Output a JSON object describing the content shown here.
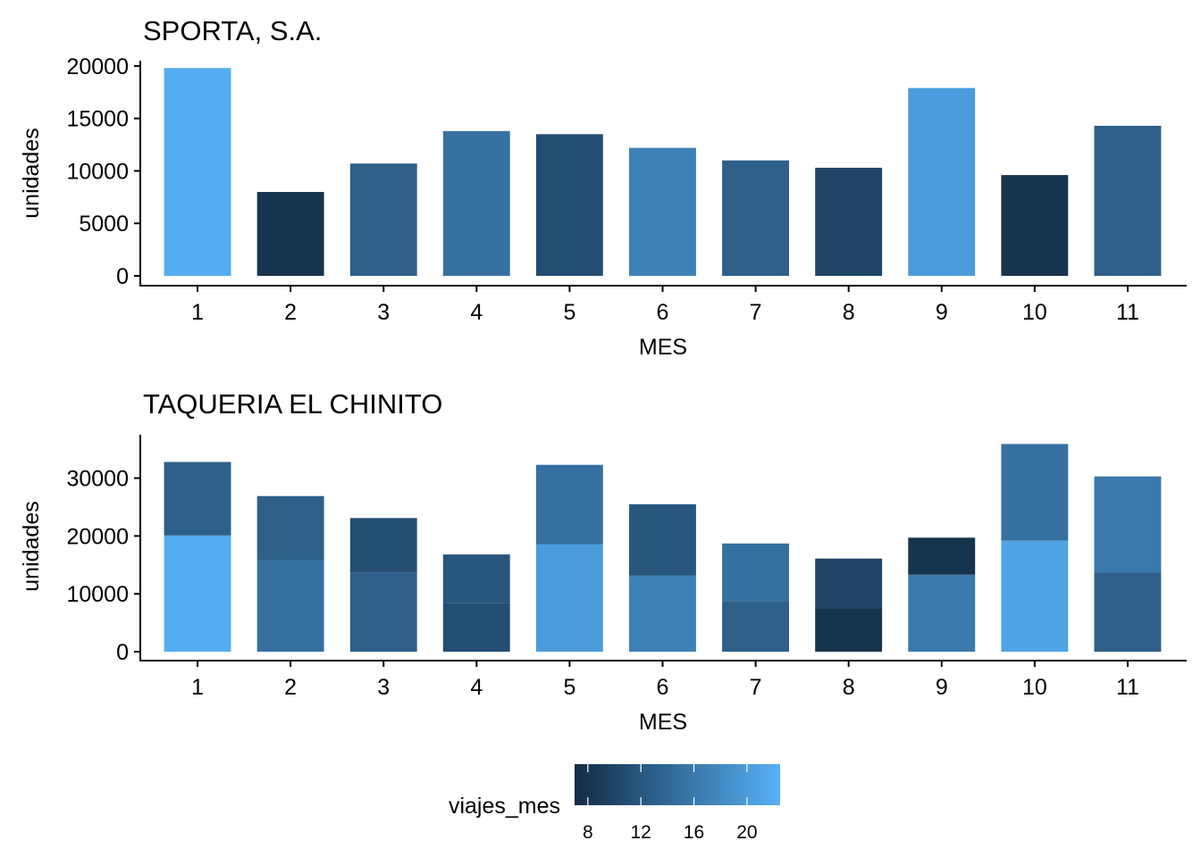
{
  "chart_data": [
    {
      "type": "bar",
      "stacked": false,
      "title": "SPORTA, S.A.",
      "xlabel": "MES",
      "ylabel": "unidades",
      "categories": [
        "1",
        "2",
        "3",
        "4",
        "5",
        "6",
        "7",
        "8",
        "9",
        "10",
        "11"
      ],
      "ylim": [
        0,
        20500
      ],
      "yticks": [
        0,
        5000,
        10000,
        15000,
        20000
      ],
      "grid": false,
      "segments": [
        [
          {
            "value": 19800,
            "viajes_mes": 22
          }
        ],
        [
          {
            "value": 8000,
            "viajes_mes": 8
          }
        ],
        [
          {
            "value": 10700,
            "viajes_mes": 13
          }
        ],
        [
          {
            "value": 13800,
            "viajes_mes": 15
          }
        ],
        [
          {
            "value": 13500,
            "viajes_mes": 11
          }
        ],
        [
          {
            "value": 12200,
            "viajes_mes": 17
          }
        ],
        [
          {
            "value": 11000,
            "viajes_mes": 13
          }
        ],
        [
          {
            "value": 10300,
            "viajes_mes": 10
          }
        ],
        [
          {
            "value": 17900,
            "viajes_mes": 20
          }
        ],
        [
          {
            "value": 9600,
            "viajes_mes": 8
          }
        ],
        [
          {
            "value": 14300,
            "viajes_mes": 13
          }
        ]
      ]
    },
    {
      "type": "bar",
      "stacked": true,
      "title": "TAQUERIA EL CHINITO",
      "xlabel": "MES",
      "ylabel": "unidades",
      "categories": [
        "1",
        "2",
        "3",
        "4",
        "5",
        "6",
        "7",
        "8",
        "9",
        "10",
        "11"
      ],
      "ylim": [
        0,
        37500
      ],
      "yticks": [
        0,
        10000,
        20000,
        30000
      ],
      "grid": false,
      "segments": [
        [
          {
            "value": 20100,
            "viajes_mes": 22
          },
          {
            "value": 12700,
            "viajes_mes": 13
          }
        ],
        [
          {
            "value": 15900,
            "viajes_mes": 15
          },
          {
            "value": 11000,
            "viajes_mes": 13
          }
        ],
        [
          {
            "value": 13700,
            "viajes_mes": 13
          },
          {
            "value": 9400,
            "viajes_mes": 11
          }
        ],
        [
          {
            "value": 8400,
            "viajes_mes": 11
          },
          {
            "value": 8400,
            "viajes_mes": 12
          }
        ],
        [
          {
            "value": 18600,
            "viajes_mes": 20
          },
          {
            "value": 13700,
            "viajes_mes": 15
          }
        ],
        [
          {
            "value": 13200,
            "viajes_mes": 17
          },
          {
            "value": 12300,
            "viajes_mes": 12
          }
        ],
        [
          {
            "value": 8700,
            "viajes_mes": 13
          },
          {
            "value": 10000,
            "viajes_mes": 15
          }
        ],
        [
          {
            "value": 7400,
            "viajes_mes": 8
          },
          {
            "value": 8700,
            "viajes_mes": 10
          }
        ],
        [
          {
            "value": 13300,
            "viajes_mes": 16
          },
          {
            "value": 6400,
            "viajes_mes": 8
          }
        ],
        [
          {
            "value": 19200,
            "viajes_mes": 21
          },
          {
            "value": 16700,
            "viajes_mes": 15
          }
        ],
        [
          {
            "value": 13700,
            "viajes_mes": 13
          },
          {
            "value": 16600,
            "viajes_mes": 16
          }
        ]
      ]
    }
  ],
  "legend": {
    "title": "viajes_mes",
    "min": 7,
    "max": 22.5,
    "low_color": "#132B43",
    "high_color": "#56B1F7",
    "ticks": [
      8,
      12,
      16,
      20
    ],
    "tick_labels": [
      "8",
      "12",
      "16",
      "20"
    ],
    "placement": "bottom"
  }
}
